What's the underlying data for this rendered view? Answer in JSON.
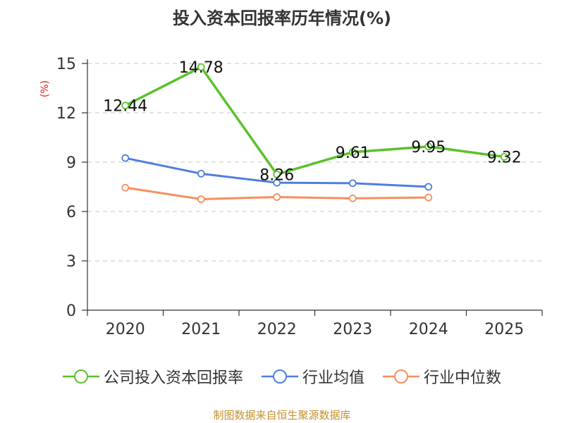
{
  "title": "投入资本回报率历年情况(%)",
  "source": "制图数据来自恒生聚源数据库",
  "chart_data": {
    "type": "line",
    "ylabel": "(%)",
    "ylim": [
      0,
      15
    ],
    "yticks": [
      0,
      3,
      6,
      9,
      12,
      15
    ],
    "categories": [
      "2020",
      "2021",
      "2022",
      "2023",
      "2024",
      "2025"
    ],
    "grid": true,
    "legend_position": "bottom",
    "series": [
      {
        "name": "公司投入资本回报率",
        "color": "#5cc12c",
        "values": [
          12.44,
          14.78,
          8.26,
          9.61,
          9.95,
          9.32
        ],
        "labels": [
          "12.44",
          "14.78",
          "8.26",
          "9.61",
          "9.95",
          "9.32"
        ]
      },
      {
        "name": "行业均值",
        "color": "#4e7fde",
        "values": [
          9.25,
          8.3,
          7.75,
          7.72,
          7.5,
          null
        ]
      },
      {
        "name": "行业中位数",
        "color": "#f78e5e",
        "values": [
          7.45,
          6.75,
          6.88,
          6.8,
          6.85,
          null
        ]
      }
    ]
  }
}
